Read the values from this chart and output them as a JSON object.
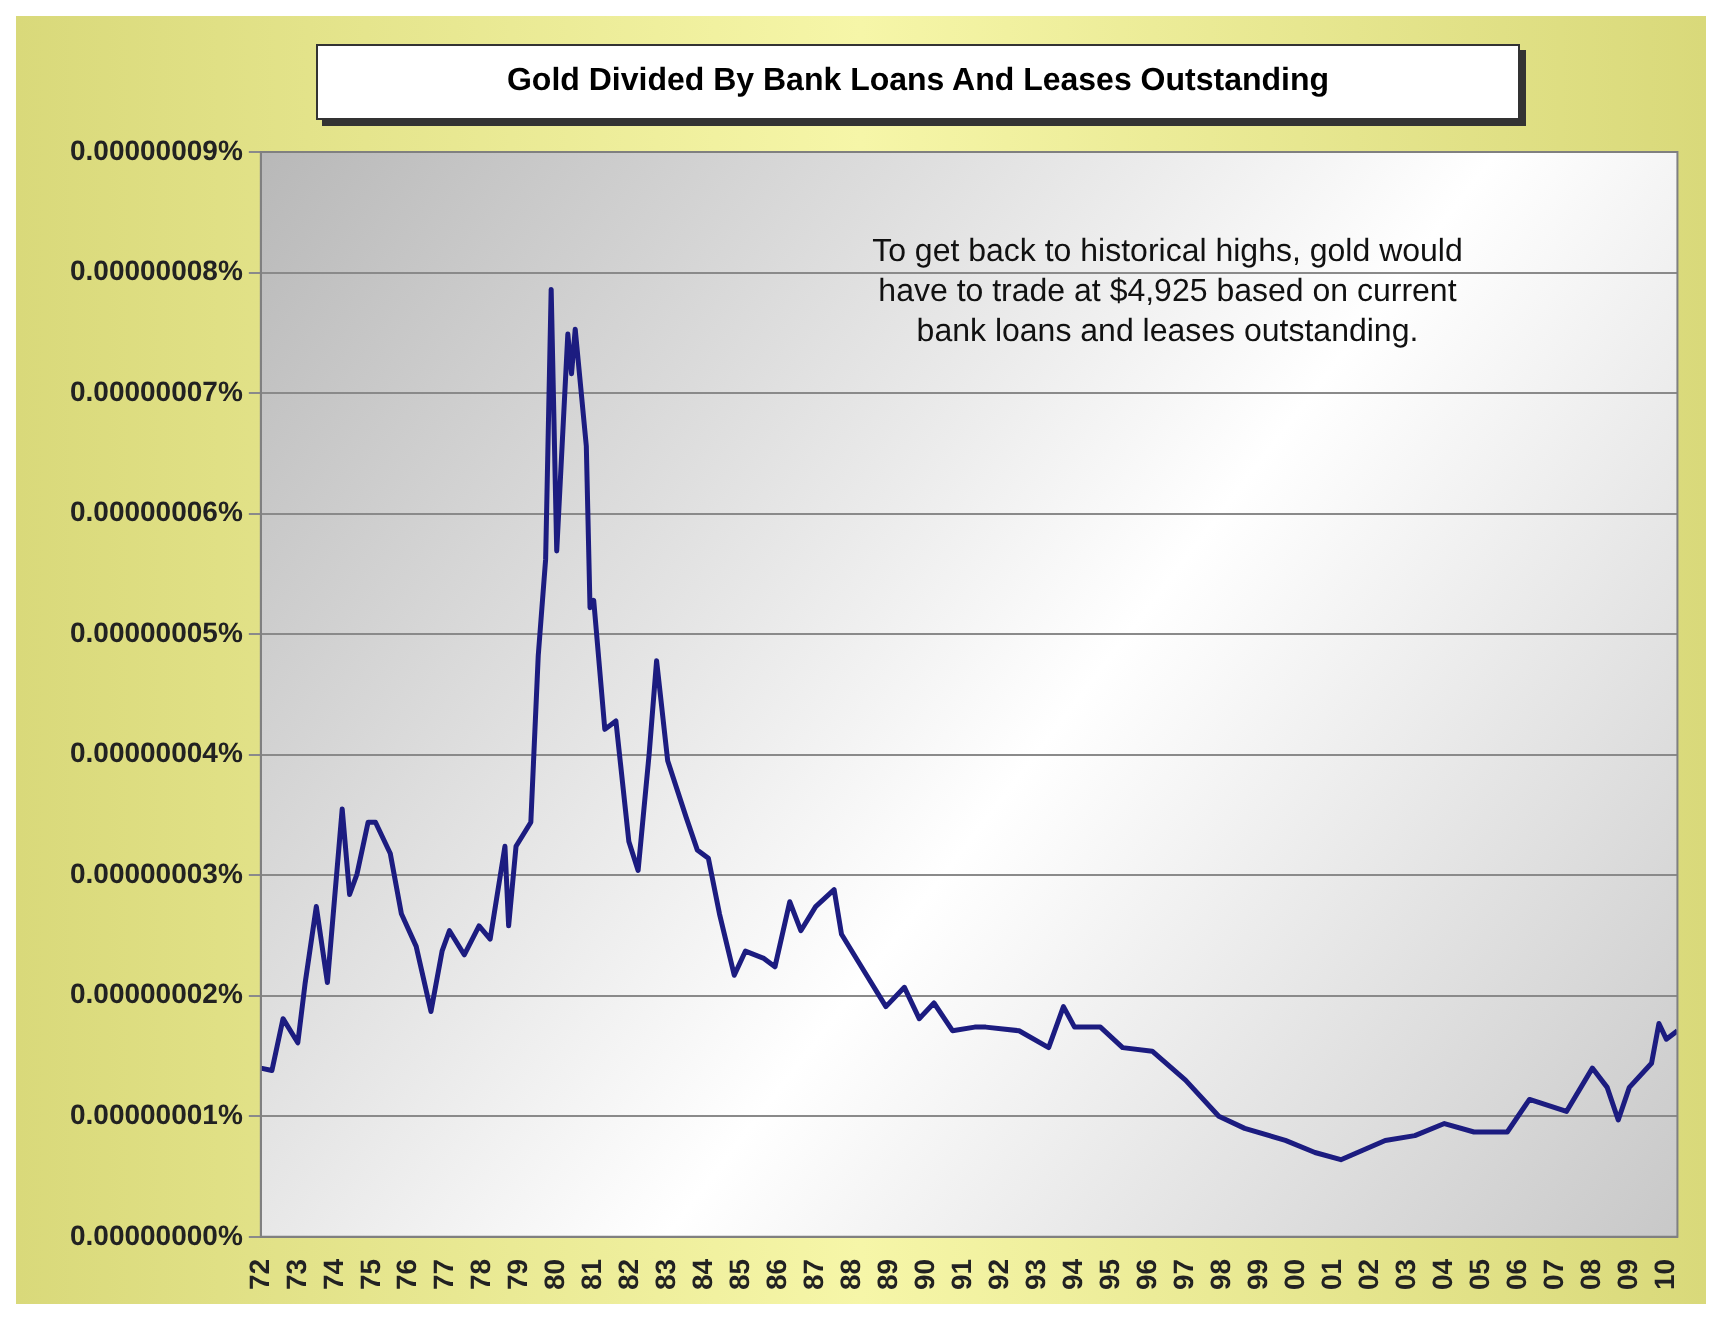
{
  "chart_data": {
    "type": "line",
    "title": "Gold Divided By Bank Loans And Leases Outstanding",
    "annotations": [
      "To get back to historical highs, gold would have to trade at $4,925 based on current bank loans and leases outstanding."
    ],
    "x": [
      1972.0,
      1972.3,
      1972.6,
      1973.0,
      1973.2,
      1973.5,
      1973.8,
      1974.2,
      1974.4,
      1974.6,
      1974.9,
      1975.1,
      1975.5,
      1975.8,
      1976.2,
      1976.6,
      1976.9,
      1977.1,
      1977.5,
      1977.9,
      1978.2,
      1978.6,
      1978.7,
      1978.9,
      1979.3,
      1979.5,
      1979.7,
      1979.85,
      1980.0,
      1980.3,
      1980.4,
      1980.5,
      1980.8,
      1980.9,
      1981.0,
      1981.3,
      1981.6,
      1981.95,
      1982.2,
      1982.5,
      1982.7,
      1983.0,
      1983.5,
      1983.8,
      1984.1,
      1984.4,
      1984.8,
      1985.1,
      1985.6,
      1985.9,
      1986.3,
      1986.6,
      1987.0,
      1987.5,
      1987.7,
      1988.3,
      1988.9,
      1989.4,
      1989.8,
      1990.2,
      1990.7,
      1991.3,
      1991.6,
      1992.5,
      1993.3,
      1993.7,
      1994.0,
      1994.7,
      1995.3,
      1996.1,
      1997.0,
      1997.9,
      1998.6,
      1999.7,
      2000.5,
      2001.2,
      2002.4,
      2003.2,
      2004.0,
      2004.8,
      2005.7,
      2006.3,
      2007.3,
      2008.0,
      2008.4,
      2008.7,
      2009.0,
      2009.6,
      2009.8,
      2010.0,
      2010.3
    ],
    "values": [
      1.4e-08,
      1.38e-08,
      1.81e-08,
      1.61e-08,
      2.11e-08,
      2.74e-08,
      2.11e-08,
      3.55e-08,
      2.84e-08,
      3.01e-08,
      3.44e-08,
      3.44e-08,
      3.18e-08,
      2.68e-08,
      2.41e-08,
      1.87e-08,
      2.37e-08,
      2.54e-08,
      2.34e-08,
      2.58e-08,
      2.47e-08,
      3.24e-08,
      2.58e-08,
      3.24e-08,
      3.44e-08,
      4.82e-08,
      5.62e-08,
      7.86e-08,
      5.69e-08,
      7.49e-08,
      7.16e-08,
      7.53e-08,
      6.56e-08,
      5.22e-08,
      5.28e-08,
      4.21e-08,
      4.28e-08,
      3.28e-08,
      3.04e-08,
      4.01e-08,
      4.78e-08,
      3.95e-08,
      3.48e-08,
      3.21e-08,
      3.14e-08,
      2.68e-08,
      2.17e-08,
      2.37e-08,
      2.31e-08,
      2.24e-08,
      2.78e-08,
      2.54e-08,
      2.74e-08,
      2.88e-08,
      2.51e-08,
      2.21e-08,
      1.91e-08,
      2.07e-08,
      1.81e-08,
      1.94e-08,
      1.71e-08,
      1.74e-08,
      1.74e-08,
      1.71e-08,
      1.57e-08,
      1.91e-08,
      1.74e-08,
      1.74e-08,
      1.57e-08,
      1.54e-08,
      1.3e-08,
      1e-08,
      9e-09,
      8e-09,
      7e-09,
      6.4e-09,
      8e-09,
      8.4e-09,
      9.4e-09,
      8.7e-09,
      8.7e-09,
      1.14e-08,
      1.04e-08,
      1.4e-08,
      1.24e-08,
      9.7e-09,
      1.24e-08,
      1.44e-08,
      1.77e-08,
      1.64e-08,
      1.71e-08
    ],
    "color": "#1c1c80",
    "marker": "none",
    "xlim": [
      1972,
      2010.3
    ],
    "xticks": [
      {
        "value": 1972,
        "label": "72"
      },
      {
        "value": 1973,
        "label": "73"
      },
      {
        "value": 1974,
        "label": "74"
      },
      {
        "value": 1975,
        "label": "75"
      },
      {
        "value": 1976,
        "label": "76"
      },
      {
        "value": 1977,
        "label": "77"
      },
      {
        "value": 1978,
        "label": "78"
      },
      {
        "value": 1979,
        "label": "79"
      },
      {
        "value": 1980,
        "label": "80"
      },
      {
        "value": 1981,
        "label": "81"
      },
      {
        "value": 1982,
        "label": "82"
      },
      {
        "value": 1983,
        "label": "83"
      },
      {
        "value": 1984,
        "label": "84"
      },
      {
        "value": 1985,
        "label": "85"
      },
      {
        "value": 1986,
        "label": "86"
      },
      {
        "value": 1987,
        "label": "87"
      },
      {
        "value": 1988,
        "label": "88"
      },
      {
        "value": 1989,
        "label": "89"
      },
      {
        "value": 1990,
        "label": "90"
      },
      {
        "value": 1991,
        "label": "91"
      },
      {
        "value": 1992,
        "label": "92"
      },
      {
        "value": 1993,
        "label": "93"
      },
      {
        "value": 1994,
        "label": "94"
      },
      {
        "value": 1995,
        "label": "95"
      },
      {
        "value": 1996,
        "label": "96"
      },
      {
        "value": 1997,
        "label": "97"
      },
      {
        "value": 1998,
        "label": "98"
      },
      {
        "value": 1999,
        "label": "99"
      },
      {
        "value": 2000,
        "label": "00"
      },
      {
        "value": 2001,
        "label": "01"
      },
      {
        "value": 2002,
        "label": "02"
      },
      {
        "value": 2003,
        "label": "03"
      },
      {
        "value": 2004,
        "label": "04"
      },
      {
        "value": 2005,
        "label": "05"
      },
      {
        "value": 2006,
        "label": "06"
      },
      {
        "value": 2007,
        "label": "07"
      },
      {
        "value": 2008,
        "label": "08"
      },
      {
        "value": 2009,
        "label": "09"
      },
      {
        "value": 2010,
        "label": "10"
      }
    ],
    "ylim": [
      0,
      9e-08
    ],
    "yticks": [
      {
        "value": 0,
        "label": "0.00000000%"
      },
      {
        "value": 1e-08,
        "label": "0.00000001%"
      },
      {
        "value": 2e-08,
        "label": "0.00000002%"
      },
      {
        "value": 3e-08,
        "label": "0.00000003%"
      },
      {
        "value": 4e-08,
        "label": "0.00000004%"
      },
      {
        "value": 5e-08,
        "label": "0.00000005%"
      },
      {
        "value": 6e-08,
        "label": "0.00000006%"
      },
      {
        "value": 7e-08,
        "label": "0.00000007%"
      },
      {
        "value": 8e-08,
        "label": "0.00000008%"
      },
      {
        "value": 9e-08,
        "label": "0.00000009%"
      }
    ],
    "grid": "y"
  }
}
